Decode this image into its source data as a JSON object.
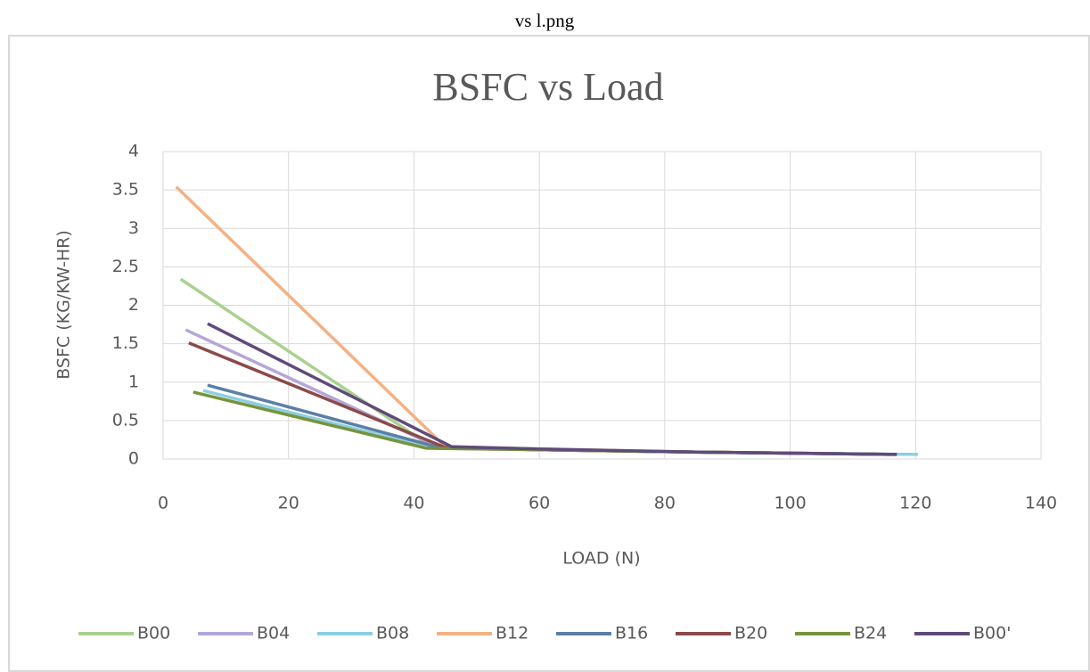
{
  "caption": "vs l.png",
  "chart_data": {
    "type": "line",
    "title": "BSFC vs Load",
    "x_label": "LOAD (N)",
    "y_label": "BSFC (KG/KW-HR)",
    "xlim": [
      0,
      140
    ],
    "xticks": [
      0,
      20,
      40,
      60,
      80,
      100,
      120,
      140
    ],
    "ylim": [
      0,
      4
    ],
    "yticks": [
      0,
      0.5,
      1,
      1.5,
      2,
      2.5,
      3,
      3.5,
      4
    ],
    "grid": true,
    "legend": "bottom",
    "series": [
      {
        "name": "B00",
        "color": "#a9d18e",
        "x": [
          2.8,
          43,
          60,
          85,
          117
        ],
        "values": [
          2.34,
          0.15,
          0.12,
          0.09,
          0.06
        ]
      },
      {
        "name": "B04",
        "color": "#b4a7d6",
        "x": [
          3.6,
          44,
          60,
          85,
          116
        ],
        "values": [
          1.68,
          0.15,
          0.12,
          0.09,
          0.06
        ]
      },
      {
        "name": "B08",
        "color": "#8ccfe0",
        "x": [
          6.4,
          43,
          60,
          85,
          120.4
        ],
        "values": [
          0.89,
          0.14,
          0.12,
          0.09,
          0.06
        ]
      },
      {
        "name": "B12",
        "color": "#f4b183",
        "x": [
          2.1,
          45,
          60,
          85,
          117
        ],
        "values": [
          3.54,
          0.16,
          0.13,
          0.09,
          0.06
        ]
      },
      {
        "name": "B16",
        "color": "#5b7fa6",
        "x": [
          7.1,
          44,
          60,
          85,
          117
        ],
        "values": [
          0.96,
          0.15,
          0.12,
          0.09,
          0.06
        ]
      },
      {
        "name": "B20",
        "color": "#8b4a4a",
        "x": [
          4.1,
          45,
          60,
          85,
          116
        ],
        "values": [
          1.51,
          0.15,
          0.12,
          0.09,
          0.06
        ]
      },
      {
        "name": "B24",
        "color": "#77933c",
        "x": [
          4.8,
          42,
          60,
          85,
          116
        ],
        "values": [
          0.87,
          0.14,
          0.12,
          0.09,
          0.06
        ]
      },
      {
        "name": "B00'",
        "color": "#5f4b7a",
        "x": [
          7.1,
          46,
          60,
          85,
          117
        ],
        "values": [
          1.76,
          0.16,
          0.13,
          0.09,
          0.06
        ]
      }
    ]
  }
}
